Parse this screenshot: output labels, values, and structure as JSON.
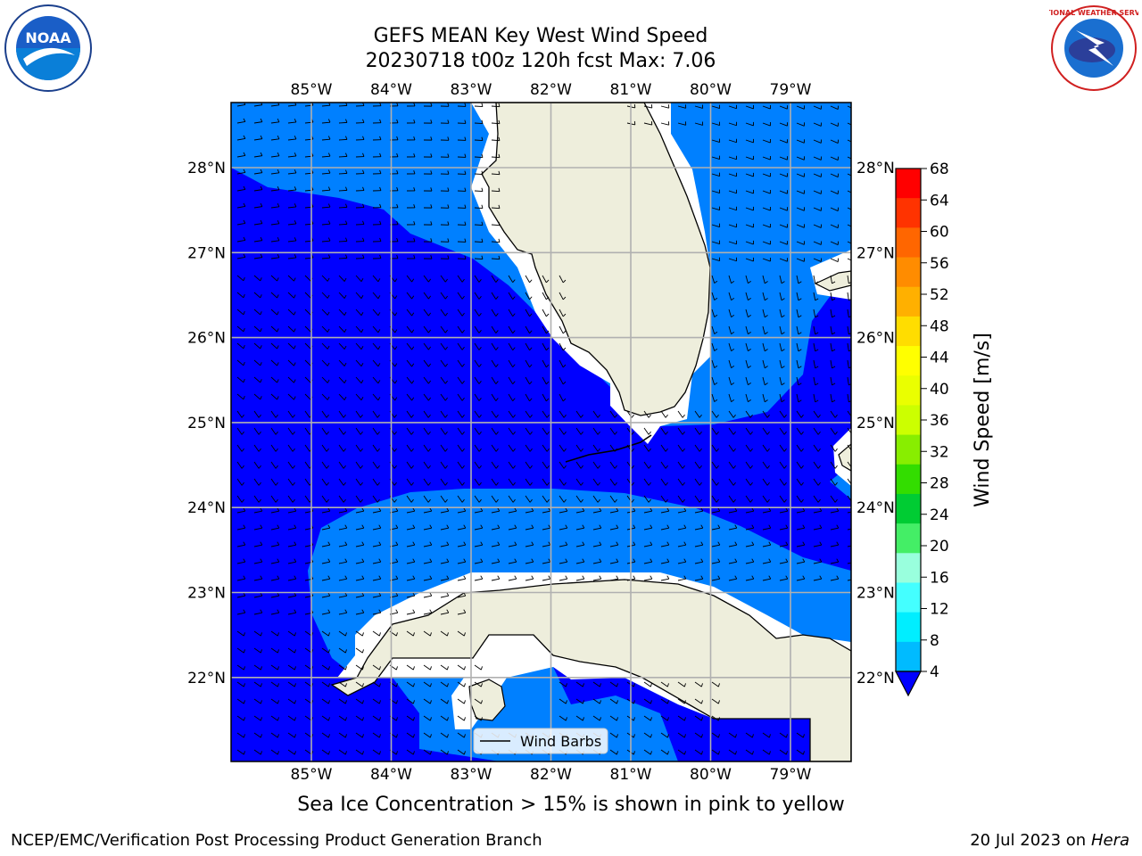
{
  "header": {
    "title_line1": "GEFS MEAN Key West Wind Speed",
    "title_line2": "20230718 t00z 120h fcst   Max: 7.06"
  },
  "logos": {
    "left_icon": "noaa-logo",
    "left_text": "NOAA",
    "right_icon": "nws-logo",
    "right_text": "NATIONAL WEATHER SERVICE"
  },
  "map": {
    "lon_labels": [
      "85°W",
      "84°W",
      "83°W",
      "82°W",
      "81°W",
      "80°W",
      "79°W"
    ],
    "lat_labels": [
      "28°N",
      "27°N",
      "26°N",
      "25°N",
      "24°N",
      "23°N",
      "22°N"
    ],
    "legend_label": "Wind Barbs",
    "colors": {
      "wind_4_8": "#0080ff",
      "wind_0_4": "#0000ff",
      "land": "#eeeedc",
      "grid": "#b0b0b0"
    }
  },
  "colorbar": {
    "label": "Wind Speed [m/s]",
    "ticks": [
      "68",
      "64",
      "60",
      "56",
      "52",
      "48",
      "44",
      "40",
      "36",
      "32",
      "28",
      "24",
      "20",
      "16",
      "12",
      "8",
      "4"
    ],
    "colors": [
      "#ff0000",
      "#ff3300",
      "#ff6600",
      "#ff8c00",
      "#ffb000",
      "#ffdd00",
      "#ffff00",
      "#eaff00",
      "#ccff00",
      "#88ee00",
      "#33dd00",
      "#00cc33",
      "#44ee66",
      "#99ffdd",
      "#44ffff",
      "#00eeff",
      "#00bbff",
      "#0066ff"
    ]
  },
  "note": "Sea Ice Concentration > 15% is shown in pink to yellow",
  "footer": {
    "left": "NCEP/EMC/Verification Post Processing Product Generation Branch",
    "right_date": "20 Jul 2023 on ",
    "right_host": "Hera"
  }
}
